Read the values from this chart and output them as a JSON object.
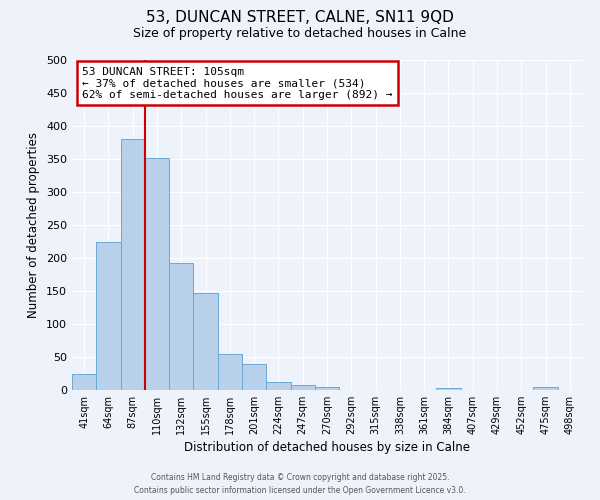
{
  "title": "53, DUNCAN STREET, CALNE, SN11 9QD",
  "subtitle": "Size of property relative to detached houses in Calne",
  "xlabel": "Distribution of detached houses by size in Calne",
  "ylabel": "Number of detached properties",
  "categories": [
    "41sqm",
    "64sqm",
    "87sqm",
    "110sqm",
    "132sqm",
    "155sqm",
    "178sqm",
    "201sqm",
    "224sqm",
    "247sqm",
    "270sqm",
    "292sqm",
    "315sqm",
    "338sqm",
    "361sqm",
    "384sqm",
    "407sqm",
    "429sqm",
    "452sqm",
    "475sqm",
    "498sqm"
  ],
  "values": [
    25,
    225,
    380,
    352,
    193,
    147,
    55,
    40,
    12,
    7,
    4,
    0,
    0,
    0,
    0,
    3,
    0,
    0,
    0,
    4,
    0
  ],
  "bar_color": "#b8d0ea",
  "bar_edge_color": "#6aaad4",
  "vline_x": 2.5,
  "vline_color": "#cc0000",
  "annotation_text": "53 DUNCAN STREET: 105sqm\n← 37% of detached houses are smaller (534)\n62% of semi-detached houses are larger (892) →",
  "annotation_box_color": "#ffffff",
  "annotation_box_edge_color": "#cc0000",
  "ylim": [
    0,
    500
  ],
  "yticks": [
    0,
    50,
    100,
    150,
    200,
    250,
    300,
    350,
    400,
    450,
    500
  ],
  "background_color": "#eef2fb",
  "grid_color": "#ffffff",
  "footer_line1": "Contains HM Land Registry data © Crown copyright and database right 2025.",
  "footer_line2": "Contains public sector information licensed under the Open Government Licence v3.0.",
  "title_fontsize": 11,
  "subtitle_fontsize": 9,
  "xlabel_fontsize": 8.5,
  "ylabel_fontsize": 8.5
}
